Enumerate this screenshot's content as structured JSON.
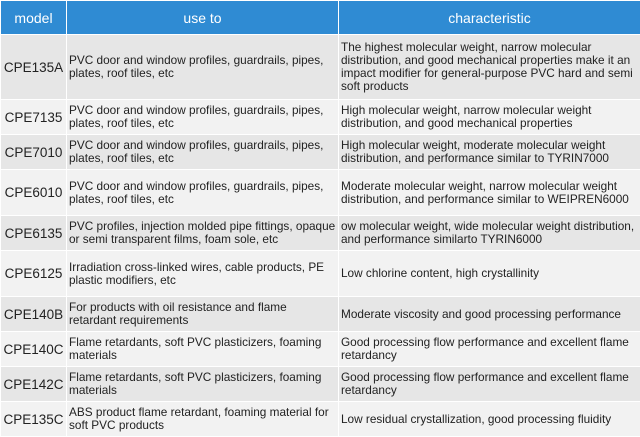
{
  "headers": {
    "model": "model",
    "use": "use to",
    "characteristic": "characteristic"
  },
  "rows": [
    {
      "model": "CPE135A",
      "use": "PVC door and window profiles, guardrails, pipes, plates, roof tiles, etc",
      "characteristic": "The highest molecular weight, narrow molecular distribution, and good mechanical properties make it an impact modifier for general-purpose PVC hard and semi soft products"
    },
    {
      "model": "CPE7135",
      "use": "PVC door and window profiles, guardrails, pipes, plates, roof tiles, etc",
      "characteristic": "High molecular weight, narrow molecular weight distribution, and good mechanical properties"
    },
    {
      "model": "CPE7010",
      "use": "PVC door and window profiles, guardrails, pipes, plates, roof tiles, etc",
      "characteristic": "High molecular weight, moderate molecular weight distribution, and performance similar to TYRIN7000"
    },
    {
      "model": "CPE6010",
      "use": "PVC door and window profiles, guardrails, pipes, plates, roof tiles, etc",
      "characteristic": "Moderate molecular weight, narrow molecular weight distribution, and performance similar to WEIPREN6000"
    },
    {
      "model": "CPE6135",
      "use": "PVC profiles, injection molded pipe fittings, opaque or semi transparent films, foam sole, etc",
      "characteristic": "ow molecular weight, wide molecular weight distribution, and performance similarto TYRIN6000"
    },
    {
      "model": "CPE6125",
      "use": "Irradiation cross-linked wires, cable products, PE plastic modifiers, etc",
      "characteristic": "Low chlorine content, high crystallinity"
    },
    {
      "model": "CPE140B",
      "use": "For products with oil resistance and flame retardant requirements",
      "characteristic": "Moderate viscosity and good processing performance"
    },
    {
      "model": "CPE140C",
      "use": "Flame retardants, soft PVC plasticizers, foaming materials",
      "characteristic": "Good processing flow performance and excellent flame retardancy"
    },
    {
      "model": "CPE142C",
      "use": "Flame retardants, soft PVC plasticizers, foaming materials",
      "characteristic": "Good processing flow performance and excellent flame retardancy"
    },
    {
      "model": "CPE135C",
      "use": "ABS product flame retardant, foaming material for soft PVC products",
      "characteristic": "Low residual crystallization, good processing fluidity"
    }
  ]
}
